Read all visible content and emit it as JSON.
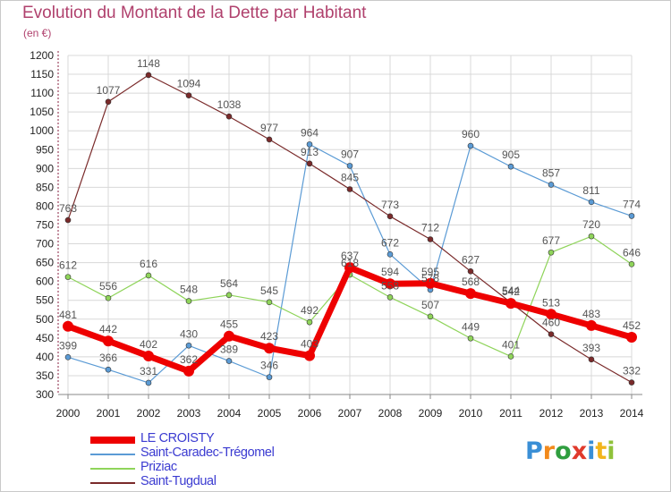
{
  "title": "Evolution du Montant de la Dette par Habitant",
  "subtitle": "(en €)",
  "logo": {
    "text": "Proxiti",
    "letters": [
      {
        "ch": "P",
        "color": "#3a8fd6"
      },
      {
        "ch": "r",
        "color": "#f28a1c"
      },
      {
        "ch": "o",
        "color": "#2f9e3f"
      },
      {
        "ch": "x",
        "color": "#e03a2c"
      },
      {
        "ch": "i",
        "color": "#3a8fd6"
      },
      {
        "ch": "t",
        "color": "#f2b51c"
      },
      {
        "ch": "i",
        "color": "#8fc23a"
      }
    ]
  },
  "chart_data": {
    "type": "line",
    "title": "Evolution du Montant de la Dette par Habitant",
    "subtitle": "(en €)",
    "x": [
      2000,
      2001,
      2002,
      2003,
      2004,
      2005,
      2006,
      2007,
      2008,
      2009,
      2010,
      2011,
      2012,
      2013,
      2014
    ],
    "ylim": [
      300,
      1200
    ],
    "yticks": [
      300,
      350,
      400,
      450,
      500,
      550,
      600,
      650,
      700,
      750,
      800,
      850,
      900,
      950,
      1000,
      1050,
      1100,
      1150,
      1200
    ],
    "grid": true,
    "legend_position": "bottom-left",
    "series": [
      {
        "name": "LE CROISTY",
        "color": "#ee0000",
        "width": 7,
        "marker_r": 6,
        "values": [
          481,
          442,
          402,
          362,
          455,
          423,
          403,
          637,
          594,
          595,
          568,
          542,
          513,
          483,
          452
        ]
      },
      {
        "name": "Saint-Caradec-Trégomel",
        "color": "#5b9bd5",
        "width": 1.2,
        "marker_r": 3,
        "values": [
          399,
          366,
          331,
          430,
          389,
          346,
          964,
          907,
          672,
          578,
          960,
          905,
          857,
          811,
          774
        ]
      },
      {
        "name": "Priziac",
        "color": "#8fd45a",
        "width": 1.2,
        "marker_r": 3,
        "values": [
          612,
          556,
          616,
          548,
          564,
          545,
          492,
          618,
          558,
          507,
          449,
          401,
          677,
          720,
          646
        ]
      },
      {
        "name": "Saint-Tugdual",
        "color": "#7a2a2a",
        "width": 1.2,
        "marker_r": 3,
        "values": [
          763,
          1077,
          1148,
          1094,
          1038,
          977,
          913,
          845,
          773,
          712,
          627,
          544,
          460,
          393,
          332
        ]
      }
    ]
  }
}
